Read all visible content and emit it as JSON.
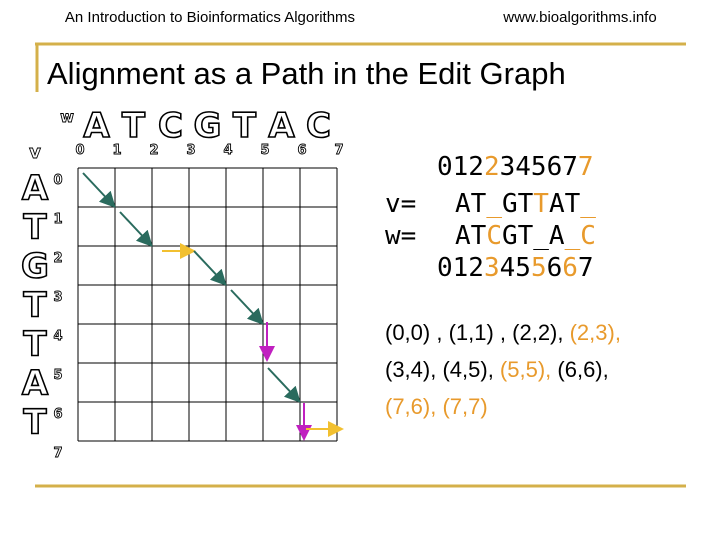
{
  "header": {
    "left": "An Introduction to Bioinformatics Algorithms",
    "right": "www.bioalgorithms.info"
  },
  "title": "Alignment as a Path in the Edit Graph",
  "grid": {
    "w_label": "w",
    "v_label": "v",
    "columns": [
      "A",
      "T",
      "C",
      "G",
      "T",
      "A",
      "C"
    ],
    "column_indices": [
      0,
      1,
      2,
      3,
      4,
      5,
      6,
      7
    ],
    "rows": [
      "A",
      "T",
      "G",
      "T",
      "T",
      "A",
      "T"
    ],
    "row_indices": [
      0,
      1,
      2,
      3,
      4,
      5,
      6,
      7
    ]
  },
  "alignment": {
    "top_indices": [
      {
        "text": "012",
        "highlight": false
      },
      {
        "text": "2",
        "highlight": true
      },
      {
        "text": "34567",
        "highlight": false
      },
      {
        "text": "7",
        "highlight": true
      }
    ],
    "v_label": "v=",
    "v": [
      {
        "text": "AT",
        "highlight": false
      },
      {
        "text": "_",
        "highlight": true
      },
      {
        "text": "GT",
        "highlight": false
      },
      {
        "text": "T",
        "highlight": true
      },
      {
        "text": "AT",
        "highlight": false
      },
      {
        "text": "_",
        "highlight": true
      }
    ],
    "w_label": "w=",
    "w": [
      {
        "text": "AT",
        "highlight": false
      },
      {
        "text": "C",
        "highlight": true
      },
      {
        "text": "GT_A",
        "highlight": false
      },
      {
        "text": "_C",
        "highlight": true
      }
    ],
    "bottom_indices": [
      {
        "text": "012",
        "highlight": false
      },
      {
        "text": "3",
        "highlight": true
      },
      {
        "text": "45",
        "highlight": false
      },
      {
        "text": "5",
        "highlight": true
      },
      {
        "text": "6",
        "highlight": false
      },
      {
        "text": "6",
        "highlight": true
      },
      {
        "text": "7",
        "highlight": false
      }
    ]
  },
  "path_text": [
    [
      {
        "text": "(0,0) , (1,1) , (2,2), ",
        "highlight": false
      },
      {
        "text": "(2,3),",
        "highlight": true
      }
    ],
    [
      {
        "text": "(3,4), (4,5), ",
        "highlight": false
      },
      {
        "text": "(5,5),",
        "highlight": true
      },
      {
        "text": " (6,6),",
        "highlight": false
      }
    ],
    [
      {
        "text": "(7,6), (7,7)",
        "highlight": true
      }
    ]
  ]
}
